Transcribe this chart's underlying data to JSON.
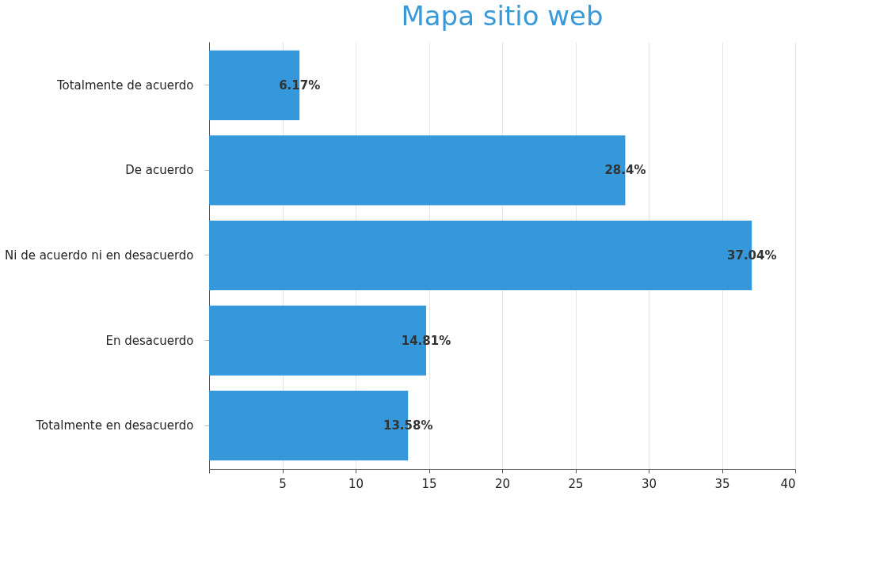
{
  "chart_data": {
    "type": "bar",
    "orientation": "horizontal",
    "title": "Mapa sitio web",
    "categories": [
      "Totalmente de acuerdo",
      "De acuerdo",
      "Ni de acuerdo ni en desacuerdo",
      "En desacuerdo",
      "Totalmente en desacuerdo"
    ],
    "series": [
      {
        "color": "#3498db",
        "values": [
          6.17,
          28.4,
          37.04,
          14.81,
          13.58
        ]
      }
    ],
    "value_labels": [
      "6.17%",
      "28.4%",
      "37.04%",
      "14.81%",
      "13.58%"
    ],
    "xlim": [
      0,
      40
    ],
    "xticks": [
      {
        "value": 0,
        "label": null
      },
      5,
      10,
      15,
      20,
      25,
      30,
      35,
      40
    ],
    "grid": "x"
  }
}
